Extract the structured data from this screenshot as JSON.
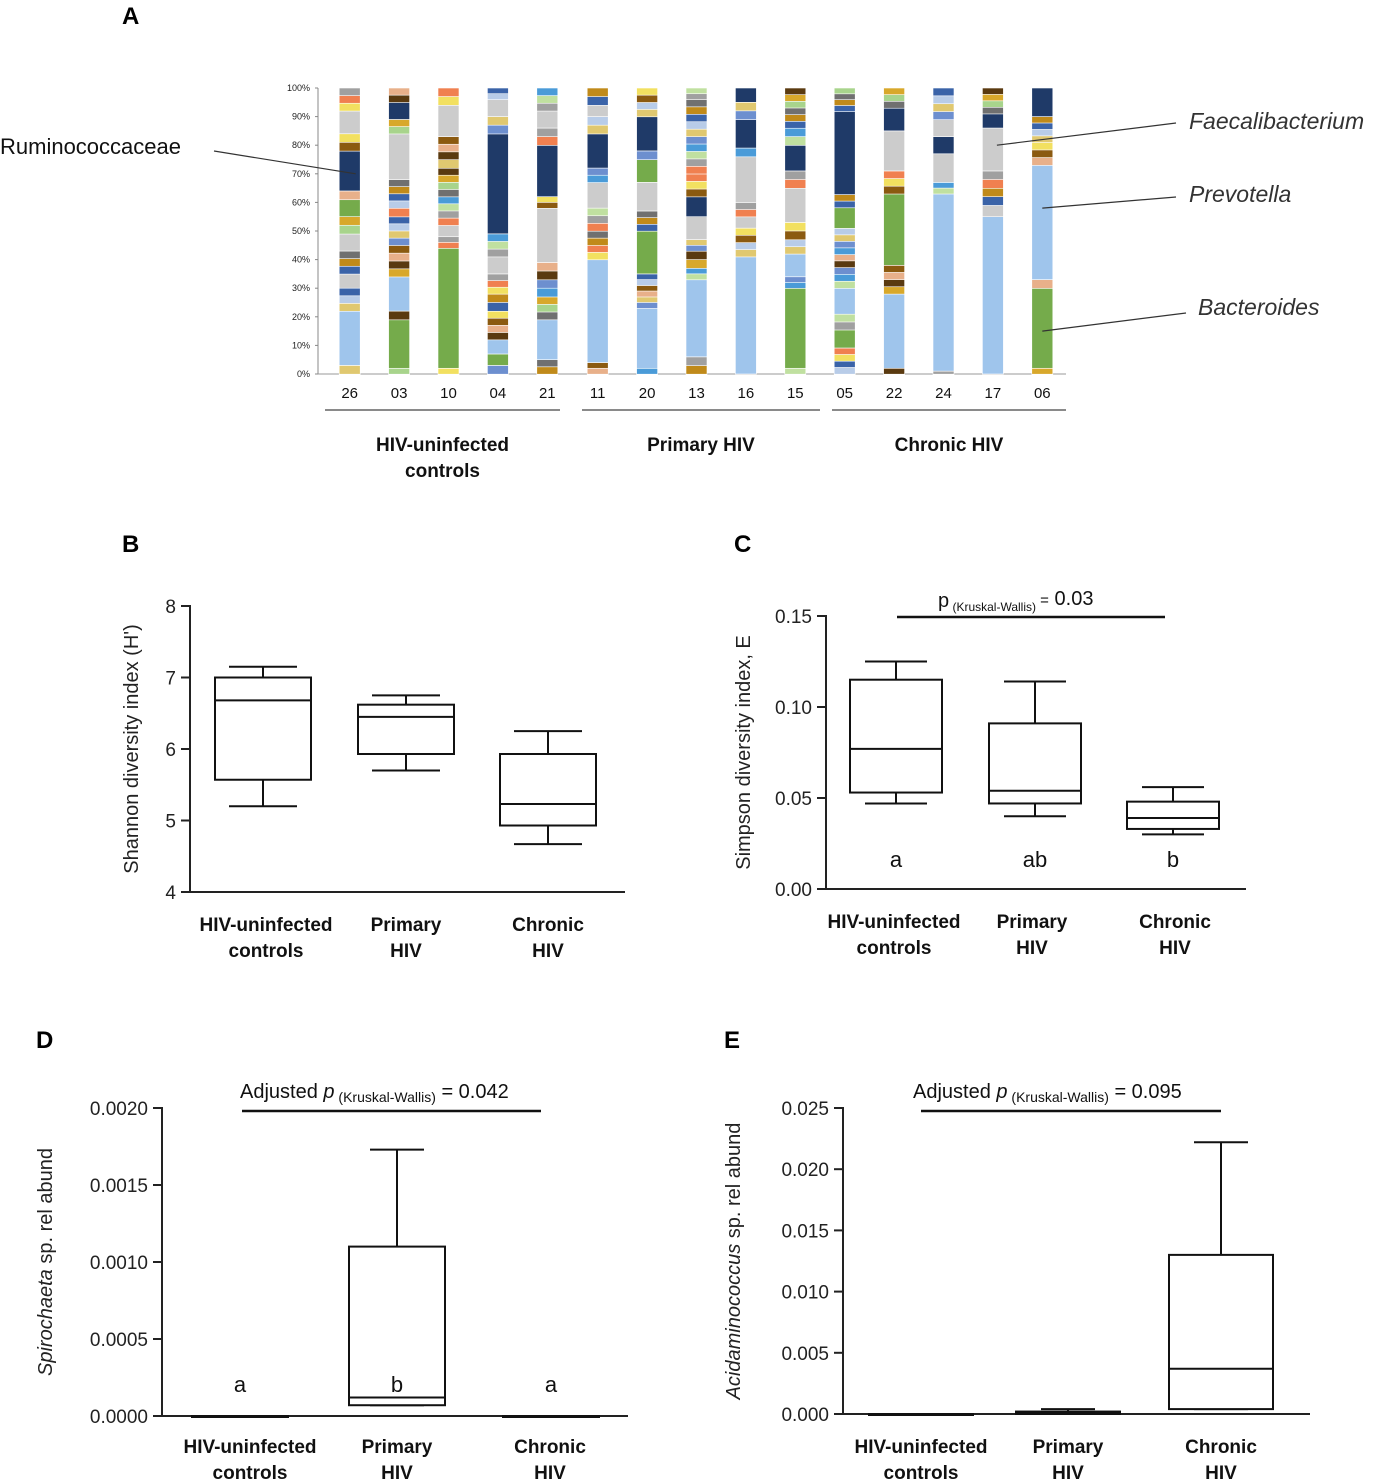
{
  "panels": {
    "A": "A",
    "B": "B",
    "C": "C",
    "D": "D",
    "E": "E"
  },
  "chart_data": [
    {
      "id": "A",
      "type": "bar",
      "subtype": "stacked-100-percent",
      "yticks": [
        "0%",
        "10%",
        "20%",
        "30%",
        "40%",
        "50%",
        "60%",
        "70%",
        "80%",
        "90%",
        "100%"
      ],
      "categories": [
        "26",
        "03",
        "10",
        "04",
        "21",
        "11",
        "20",
        "13",
        "16",
        "15",
        "05",
        "22",
        "24",
        "17",
        "06"
      ],
      "groups": [
        {
          "name": "HIV-uninfected controls",
          "lines": [
            "HIV-uninfected",
            "controls"
          ],
          "samples": [
            "26",
            "03",
            "10",
            "04",
            "21"
          ]
        },
        {
          "name": "Primary HIV",
          "lines": [
            "Primary HIV"
          ],
          "samples": [
            "11",
            "20",
            "13",
            "16",
            "15"
          ]
        },
        {
          "name": "Chronic HIV",
          "lines": [
            "Chronic HIV"
          ],
          "samples": [
            "05",
            "22",
            "24",
            "17",
            "06"
          ]
        }
      ],
      "taxa_colors": {
        "Bacteroides": "#9fc5ec",
        "Prevotella": "#75ab4b",
        "Faecalibacterium": "#cccccc",
        "Ruminococcaceae": "#1f3a68",
        "Other": [
          "#e0c870",
          "#c08a1a",
          "#d8a82b",
          "#8b5a10",
          "#a0a0a0",
          "#6d8fcf",
          "#3a63a8",
          "#a8d48c",
          "#e8b08a",
          "#f08050",
          "#4a9bd8",
          "#b8cce8",
          "#707070",
          "#5a3a10",
          "#f2e060",
          "#c0e0a0"
        ]
      },
      "samples": [
        {
          "id": "26",
          "segments": [
            [
              "Other",
              3
            ],
            [
              "Bacteroides",
              19
            ],
            [
              "Other",
              8
            ],
            [
              "Faecalibacterium",
              5
            ],
            [
              "Other",
              8
            ],
            [
              "Faecalibacterium",
              6
            ],
            [
              "Other",
              6
            ],
            [
              "Prevotella",
              6
            ],
            [
              "Other",
              3
            ],
            [
              "Ruminococcaceae",
              14
            ],
            [
              "Other",
              6
            ],
            [
              "Faecalibacterium",
              8
            ],
            [
              "Other",
              8
            ]
          ]
        },
        {
          "id": "03",
          "segments": [
            [
              "Other",
              2
            ],
            [
              "Prevotella",
              17
            ],
            [
              "Other",
              3
            ],
            [
              "Bacteroides",
              12
            ],
            [
              "Other",
              11
            ],
            [
              "Other",
              10
            ],
            [
              "Other",
              3
            ],
            [
              "Other",
              10
            ],
            [
              "Faecalibacterium",
              16
            ],
            [
              "Other",
              5
            ],
            [
              "Ruminococcaceae",
              6
            ],
            [
              "Other",
              5
            ]
          ]
        },
        {
          "id": "10",
          "segments": [
            [
              "Other",
              2
            ],
            [
              "Prevotella",
              42
            ],
            [
              "Other",
              4
            ],
            [
              "Faecalibacterium",
              4
            ],
            [
              "Other",
              10
            ],
            [
              "Other",
              10
            ],
            [
              "Other",
              3
            ],
            [
              "Other",
              8
            ],
            [
              "Faecalibacterium",
              11
            ],
            [
              "Other",
              6
            ]
          ]
        },
        {
          "id": "04",
          "segments": [
            [
              "Other",
              3
            ],
            [
              "Prevotella",
              4
            ],
            [
              "Bacteroides",
              5
            ],
            [
              "Other",
              10
            ],
            [
              "Other",
              6
            ],
            [
              "Other",
              7
            ],
            [
              "Faecalibacterium",
              6
            ],
            [
              "Other",
              8
            ],
            [
              "Ruminococcaceae",
              35
            ],
            [
              "Other",
              6
            ],
            [
              "Faecalibacterium",
              6
            ],
            [
              "Other",
              4
            ]
          ]
        },
        {
          "id": "21",
          "segments": [
            [
              "Other",
              5
            ],
            [
              "Bacteroides",
              14
            ],
            [
              "Other",
              8
            ],
            [
              "Other",
              6
            ],
            [
              "Other",
              6
            ],
            [
              "Faecalibacterium",
              19
            ],
            [
              "Other",
              4
            ],
            [
              "Ruminococcaceae",
              18
            ],
            [
              "Other",
              6
            ],
            [
              "Faecalibacterium",
              6
            ],
            [
              "Other",
              8
            ]
          ]
        },
        {
          "id": "11",
          "segments": [
            [
              "Other",
              4
            ],
            [
              "Bacteroides",
              36
            ],
            [
              "Other",
              5
            ],
            [
              "Other",
              5
            ],
            [
              "Other",
              8
            ],
            [
              "Faecalibacterium",
              9
            ],
            [
              "Other",
              5
            ],
            [
              "Ruminococcaceae",
              12
            ],
            [
              "Other",
              6
            ],
            [
              "Faecalibacterium",
              4
            ],
            [
              "Other",
              6
            ]
          ]
        },
        {
          "id": "20",
          "segments": [
            [
              "Other",
              2
            ],
            [
              "Bacteroides",
              21
            ],
            [
              "Other",
              4
            ],
            [
              "Other",
              4
            ],
            [
              "Other",
              4
            ],
            [
              "Prevotella",
              15
            ],
            [
              "Other",
              7
            ],
            [
              "Faecalibacterium",
              10
            ],
            [
              "Prevotella",
              8
            ],
            [
              "Other",
              3
            ],
            [
              "Ruminococcaceae",
              12
            ],
            [
              "Other",
              5
            ],
            [
              "Other",
              5
            ]
          ]
        },
        {
          "id": "13",
          "segments": [
            [
              "Other",
              3
            ],
            [
              "Other",
              3
            ],
            [
              "Bacteroides",
              27
            ],
            [
              "Other",
              4
            ],
            [
              "Other",
              6
            ],
            [
              "Other",
              4
            ],
            [
              "Faecalibacterium",
              8
            ],
            [
              "Ruminococcaceae",
              7
            ],
            [
              "Other",
              8
            ],
            [
              "Other",
              26
            ],
            [
              "Other",
              4
            ]
          ]
        },
        {
          "id": "16",
          "segments": [
            [
              "Bacteroides",
              41
            ],
            [
              "Other",
              5
            ],
            [
              "Other",
              5
            ],
            [
              "Faecalibacterium",
              4
            ],
            [
              "Other",
              5
            ],
            [
              "Faecalibacterium",
              16
            ],
            [
              "Other",
              3
            ],
            [
              "Ruminococcaceae",
              10
            ],
            [
              "Other",
              6
            ],
            [
              "Ruminococcaceae",
              5
            ]
          ]
        },
        {
          "id": "15",
          "segments": [
            [
              "Other",
              2
            ],
            [
              "Prevotella",
              28
            ],
            [
              "Other",
              4
            ],
            [
              "Bacteroides",
              8
            ],
            [
              "Other",
              5
            ],
            [
              "Other",
              6
            ],
            [
              "Faecalibacterium",
              12
            ],
            [
              "Other",
              6
            ],
            [
              "Ruminococcaceae",
              9
            ],
            [
              "Other",
              6
            ],
            [
              "Other",
              14
            ]
          ]
        },
        {
          "id": "05",
          "segments": [
            [
              "Other",
              5
            ],
            [
              "Other",
              5
            ],
            [
              "Prevotella",
              7
            ],
            [
              "Other",
              6
            ],
            [
              "Bacteroides",
              10
            ],
            [
              "Other",
              8
            ],
            [
              "Other",
              5
            ],
            [
              "Other",
              10
            ],
            [
              "Prevotella",
              8
            ],
            [
              "Other",
              5
            ],
            [
              "Ruminococcaceae",
              32
            ],
            [
              "Other",
              9
            ]
          ]
        },
        {
          "id": "22",
          "segments": [
            [
              "Other",
              2
            ],
            [
              "Bacteroides",
              26
            ],
            [
              "Other",
              10
            ],
            [
              "Prevotella",
              25
            ],
            [
              "Other",
              8
            ],
            [
              "Faecalibacterium",
              14
            ],
            [
              "Ruminococcaceae",
              8
            ],
            [
              "Other",
              7
            ]
          ]
        },
        {
          "id": "24",
          "segments": [
            [
              "Other",
              1
            ],
            [
              "Bacteroides",
              62
            ],
            [
              "Other",
              4
            ],
            [
              "Faecalibacterium",
              10
            ],
            [
              "Ruminococcaceae",
              6
            ],
            [
              "Faecalibacterium",
              6
            ],
            [
              "Other",
              11
            ]
          ]
        },
        {
          "id": "17",
          "segments": [
            [
              "Bacteroides",
              55
            ],
            [
              "Faecalibacterium",
              4
            ],
            [
              "Other",
              6
            ],
            [
              "Other",
              6
            ],
            [
              "Faecalibacterium",
              15
            ],
            [
              "Ruminococcaceae",
              5
            ],
            [
              "Other",
              9
            ]
          ]
        },
        {
          "id": "06",
          "segments": [
            [
              "Other",
              2
            ],
            [
              "Prevotella",
              28
            ],
            [
              "Other",
              3
            ],
            [
              "Bacteroides",
              40
            ],
            [
              "Other",
              8
            ],
            [
              "Other",
              9
            ],
            [
              "Ruminococcaceae",
              10
            ]
          ]
        }
      ],
      "annotations": [
        {
          "text": "Ruminococcaceae",
          "italic": false,
          "sample": "26",
          "level": 70
        },
        {
          "text": "Faecalibacterium",
          "italic": true,
          "sample": "17",
          "level": 80
        },
        {
          "text": "Prevotella",
          "italic": true,
          "sample": "06",
          "level": 58
        },
        {
          "text": "Bacteroides",
          "italic": true,
          "sample": "06",
          "level": 15
        }
      ]
    },
    {
      "id": "B",
      "type": "box",
      "ylabel": "Shannon diversity index (H')",
      "ylim": [
        4,
        8
      ],
      "yticks": [
        "4",
        "5",
        "6",
        "7",
        "8"
      ],
      "categories": [
        [
          "HIV-uninfected",
          "controls"
        ],
        [
          "Primary",
          "HIV"
        ],
        [
          "Chronic",
          "HIV"
        ]
      ],
      "boxes": [
        {
          "min": 5.2,
          "q1": 5.57,
          "median": 6.68,
          "q3": 7.0,
          "max": 7.15
        },
        {
          "min": 5.7,
          "q1": 5.93,
          "median": 6.45,
          "q3": 6.62,
          "max": 6.75
        },
        {
          "min": 4.67,
          "q1": 4.93,
          "median": 5.23,
          "q3": 5.93,
          "max": 6.25
        }
      ]
    },
    {
      "id": "C",
      "type": "box",
      "ylabel": "Simpson diversity index, E",
      "ylim": [
        0,
        0.15
      ],
      "yticks": [
        "0.00",
        "0.05",
        "0.10",
        "0.15"
      ],
      "categories": [
        [
          "HIV-uninfected",
          "controls"
        ],
        [
          "Primary",
          "HIV"
        ],
        [
          "Chronic",
          "HIV"
        ]
      ],
      "boxes": [
        {
          "min": 0.047,
          "q1": 0.053,
          "median": 0.077,
          "q3": 0.115,
          "max": 0.125
        },
        {
          "min": 0.04,
          "q1": 0.047,
          "median": 0.054,
          "q3": 0.091,
          "max": 0.114
        },
        {
          "min": 0.03,
          "q1": 0.033,
          "median": 0.039,
          "q3": 0.048,
          "max": 0.056
        }
      ],
      "letters": [
        "a",
        "ab",
        "b"
      ],
      "pvalue": {
        "prefix": "p",
        "sub": "(Kruskal-Wallis)",
        "eq": "=",
        "value": "0.03"
      }
    },
    {
      "id": "D",
      "type": "box",
      "ylabel_italic": "Spirochaeta",
      "ylabel_rest": " sp. rel abund",
      "ylim": [
        0,
        0.002
      ],
      "yticks": [
        "0.0000",
        "0.0005",
        "0.0010",
        "0.0015",
        "0.0020"
      ],
      "categories": [
        [
          "HIV-uninfected",
          "controls"
        ],
        [
          "Primary",
          "HIV"
        ],
        [
          "Chronic",
          "HIV"
        ]
      ],
      "boxes": [
        {
          "min": 0,
          "q1": 0,
          "median": 0,
          "q3": 0,
          "max": 0
        },
        {
          "min": 7e-05,
          "q1": 7e-05,
          "median": 0.00012,
          "q3": 0.0011,
          "max": 0.00173
        },
        {
          "min": 0,
          "q1": 0,
          "median": 0,
          "q3": 0,
          "max": 0
        }
      ],
      "letters": [
        "a",
        "b",
        "a"
      ],
      "pvalue": {
        "prefix": "Adjusted ",
        "p": "p",
        "sub": "(Kruskal-Wallis)",
        "eq": "= 0.042"
      }
    },
    {
      "id": "E",
      "type": "box",
      "ylabel_italic": "Acidaminococcus",
      "ylabel_rest": " sp. rel abund",
      "ylim": [
        0,
        0.025
      ],
      "yticks": [
        "0.000",
        "0.005",
        "0.010",
        "0.015",
        "0.020",
        "0.025"
      ],
      "categories": [
        [
          "HIV-uninfected",
          "controls"
        ],
        [
          "Primary",
          "HIV"
        ],
        [
          "Chronic",
          "HIV"
        ]
      ],
      "boxes": [
        {
          "min": 0,
          "q1": 0,
          "median": 0,
          "q3": 0,
          "max": 0
        },
        {
          "min": 0,
          "q1": 0,
          "median": 0.0001,
          "q3": 0.0002,
          "max": 0.0004
        },
        {
          "min": 0.0004,
          "q1": 0.0004,
          "median": 0.0037,
          "q3": 0.013,
          "max": 0.0222
        }
      ],
      "pvalue": {
        "prefix": "Adjusted ",
        "p": "p",
        "sub": "(Kruskal-Wallis)",
        "eq": "= 0.095"
      }
    }
  ]
}
